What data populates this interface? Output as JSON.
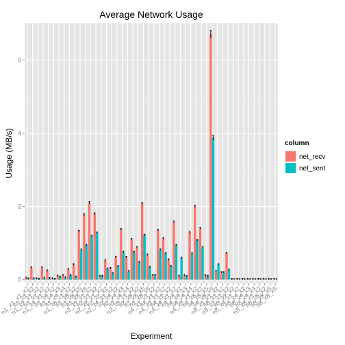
{
  "chart_data": {
    "type": "bar",
    "title": "Average Network Usage",
    "xlabel": "Experiment",
    "ylabel": "Usage (MB/s)",
    "ylim": [
      -0.1,
      7.0
    ],
    "yticks": [
      0,
      2,
      4,
      6
    ],
    "grid": true,
    "legend_position": "right",
    "legend_title": "column",
    "categories": [
      "n1_x1_x1_x2",
      "n1_x1_x2",
      "n1_x2_x1_x2",
      "n1_x2_x2",
      "n1_x4_x1_x2",
      "n1_x4_x2",
      "n1_x4_x3",
      "n1_x4_x4",
      "n1_x8_x1_x2",
      "n1_x8_x2",
      "n1_x8_x5",
      "n1_x8_x6",
      "n2_x1_x1_x2",
      "n2_x1_x2",
      "n2_x2_x1_x2",
      "n2_x2_x2",
      "n2_x4_x1_x2",
      "n2_x4_x2",
      "n2_x4_x3",
      "n2_x4_x4",
      "n2_x8_x1_x2",
      "n2_x8_x2",
      "n2_x8_x5",
      "n2_x8_x6",
      "n4_x1_x1_x2",
      "n4_x1_x2",
      "n4_x2_x1_x2",
      "n4_x2_x2",
      "n4_x4_x1_x2",
      "n4_x4_x2",
      "n4_x4_x3",
      "n4_x4_x4",
      "n4_x8_x1_x2",
      "n4_x8_x2",
      "n4_x8_x5",
      "n4_x8_x6",
      "n8_x1_x1_x2",
      "n8_x1_x2",
      "n8_x2_x1_x2",
      "n8_x2_x2",
      "n8_x4_x1_x2",
      "n8_x4_x2",
      "n8_x4_x3",
      "n8_x4_x4",
      "n8_x8_x1_x2",
      "n8_x8_x2",
      "n8_x8_x5",
      "n8_x8_x6"
    ],
    "series": [
      {
        "name": "net_recv",
        "color": "#f8766d",
        "values": [
          0.05,
          0.33,
          0.03,
          0.33,
          0.25,
          0.03,
          0.1,
          0.12,
          0.28,
          0.42,
          1.33,
          1.78,
          2.1,
          1.8,
          0.1,
          0.52,
          0.32,
          0.62,
          1.38,
          0.62,
          1.1,
          0.88,
          2.08,
          0.68,
          0.13,
          1.35,
          1.13,
          0.55,
          1.58,
          0.1,
          0.12,
          1.3,
          2.0,
          1.4,
          0.12,
          6.7,
          0.23,
          0.2,
          0.73,
          0.02,
          0.02,
          0.02,
          0.02,
          0.02,
          0.02,
          0.02,
          0.02,
          0.02
        ]
      },
      {
        "name": "net_sent",
        "color": "#00bfc4",
        "values": [
          0.03,
          0.03,
          0.02,
          0.05,
          0.04,
          0.02,
          0.08,
          0.06,
          0.12,
          0.08,
          0.82,
          0.95,
          1.2,
          1.28,
          0.1,
          0.3,
          0.17,
          0.37,
          0.75,
          0.23,
          0.75,
          0.48,
          1.22,
          0.35,
          0.13,
          0.82,
          0.72,
          0.37,
          0.95,
          0.6,
          0.09,
          0.72,
          1.08,
          0.88,
          0.1,
          3.88,
          0.42,
          0.2,
          0.27,
          0.01,
          0.01,
          0.01,
          0.01,
          0.01,
          0.01,
          0.01,
          0.01,
          0.01
        ]
      }
    ]
  }
}
